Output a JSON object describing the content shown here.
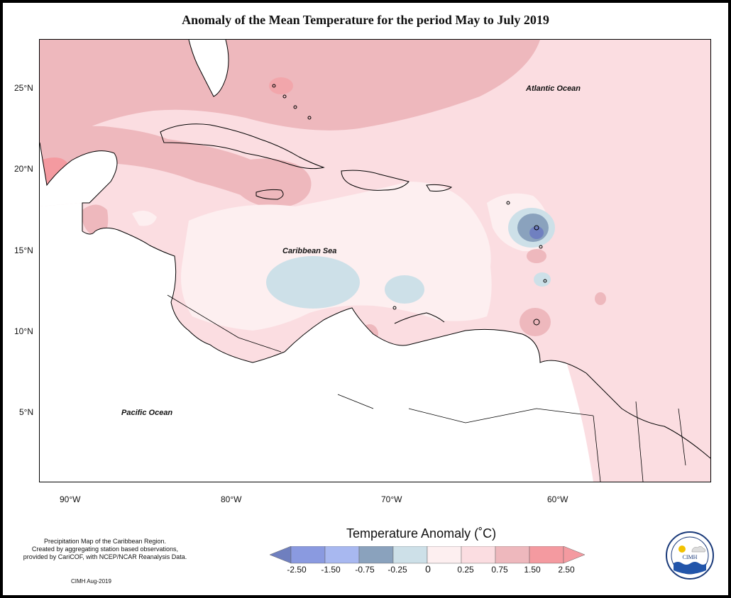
{
  "title": "Anomaly of the Mean Temperature for the period May to July 2019",
  "map": {
    "latitude_labels": [
      "25°N",
      "20°N",
      "15°N",
      "10°N",
      "5°N"
    ],
    "longitude_labels": [
      "90°W",
      "80°W",
      "70°W",
      "60°W"
    ],
    "labels": {
      "atlantic": "Atlantic Ocean",
      "caribbean": "Caribbean Sea",
      "pacific": "Pacific Ocean"
    }
  },
  "colors": {
    "c_neg_2_5": "#7080c0",
    "c_neg_1_5": "#a8b8f0",
    "c_neg_0_75": "#8aa2bd",
    "c_neg_0_25": "#cde0e8",
    "c_0": "#fdeff0",
    "c_0_25": "#fbdde1",
    "c_0_75": "#eeb8bd",
    "c_1_5": "#f49aa0",
    "land_white": "#ffffff"
  },
  "legend": {
    "title": "Temperature Anomaly (˚C)",
    "ticks": [
      "-2.50",
      "-1.50",
      "-0.75",
      "-0.25",
      "0",
      "0.25",
      "0.75",
      "1.50",
      "2.50"
    ]
  },
  "footer": {
    "credit_line1": "Precipitation Map of the Caribbean Region.",
    "credit_line2": "Created by aggregating station based observations,",
    "credit_line3": "provided by CariCOF, with NCEP/NCAR Reanalysis Data.",
    "date": "CIMH Aug-2019"
  },
  "logo": {
    "text": "CIMH"
  }
}
